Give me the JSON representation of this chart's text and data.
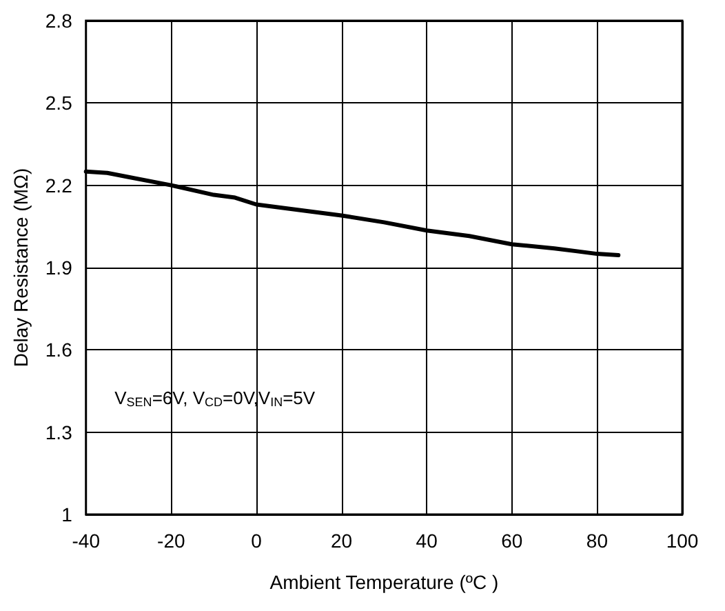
{
  "chart_data": {
    "type": "line",
    "xlabel": "Ambient Temperature (ºC )",
    "ylabel": "Delay Resistance (MΩ)",
    "x": [
      -40,
      -35,
      -30,
      -20,
      -10,
      -5,
      0,
      10,
      20,
      30,
      40,
      50,
      60,
      70,
      75,
      80,
      85
    ],
    "series": [
      {
        "color": "#000000",
        "values": [
          2.25,
          2.245,
          2.23,
          2.2,
          2.165,
          2.155,
          2.13,
          2.11,
          2.09,
          2.065,
          2.035,
          2.015,
          1.985,
          1.97,
          1.96,
          1.95,
          1.945
        ]
      }
    ],
    "xlim": [
      -40,
      100
    ],
    "xticks": [
      -40,
      -20,
      0,
      20,
      40,
      60,
      80,
      100
    ],
    "ylim": [
      1,
      2.8
    ],
    "yticks": [
      1,
      1.3,
      1.6,
      1.9,
      2.2,
      2.5,
      2.8
    ],
    "annotations": [
      "V$_{SEN}$=6V, V$_{CD}$=0V,V$_{IN}$=5V"
    ],
    "grid": true,
    "marker": "none",
    "line_style": "solid"
  }
}
